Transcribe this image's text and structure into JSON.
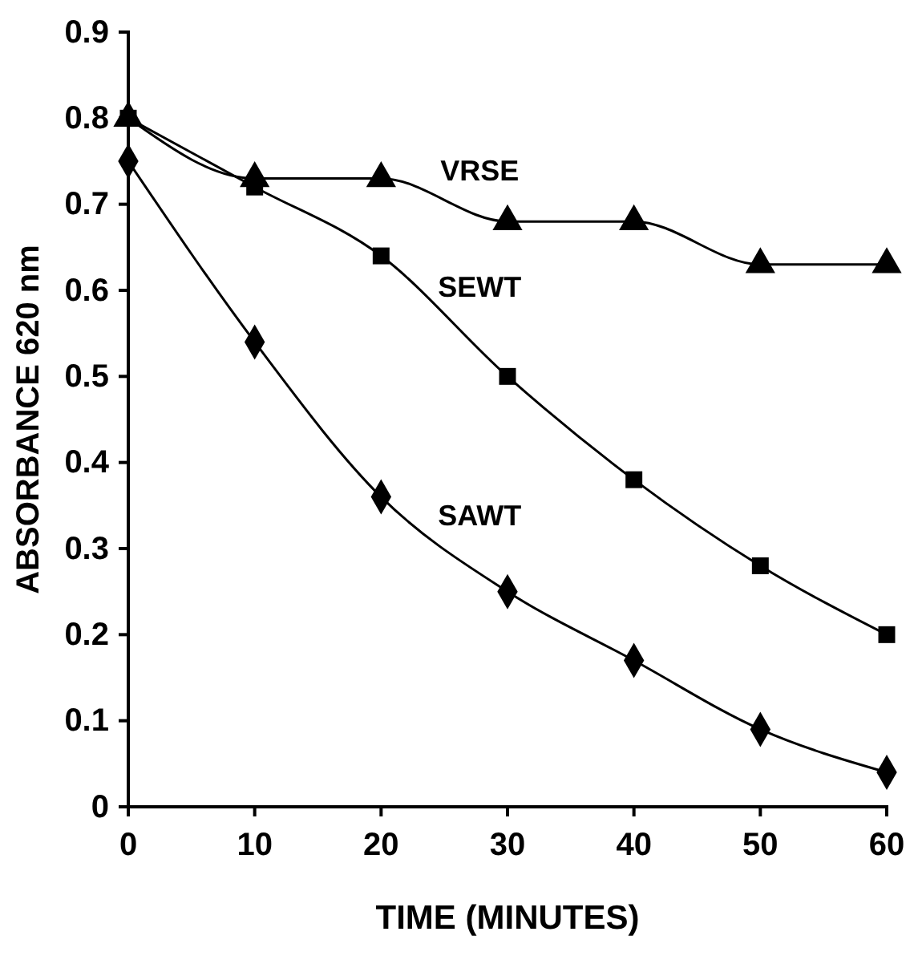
{
  "chart_data": {
    "type": "line",
    "xlabel": "TIME (MINUTES)",
    "ylabel": "ABSORBANCE 620 nm",
    "x": [
      0,
      10,
      20,
      30,
      40,
      50,
      60
    ],
    "series": [
      {
        "name": "VRSE",
        "color": "#000000",
        "marker": "triangle",
        "values": [
          0.8,
          0.73,
          0.73,
          0.68,
          0.68,
          0.63,
          0.63
        ]
      },
      {
        "name": "SEWT",
        "color": "#000000",
        "marker": "square",
        "values": [
          0.8,
          0.72,
          0.64,
          0.5,
          0.38,
          0.28,
          0.2
        ]
      },
      {
        "name": "SAWT",
        "color": "#000000",
        "marker": "diamond",
        "values": [
          0.75,
          0.54,
          0.36,
          0.25,
          0.17,
          0.09,
          0.04
        ]
      }
    ],
    "xlim": [
      0,
      60
    ],
    "xticks": [
      0,
      10,
      20,
      30,
      40,
      50,
      60
    ],
    "ylim": [
      0,
      0.9
    ],
    "yticks": [
      0,
      {
        "value": 0.1,
        "label": "0.1"
      },
      {
        "value": 0.2,
        "label": "0.2"
      },
      {
        "value": 0.3,
        "label": "0.3"
      },
      {
        "value": 0.4,
        "label": "0.4"
      },
      {
        "value": 0.5,
        "label": "0.5"
      },
      {
        "value": 0.6,
        "label": "0.6"
      },
      {
        "value": 0.7,
        "label": "0.7"
      },
      {
        "value": 0.8,
        "label": "0.8"
      },
      {
        "value": 0.9,
        "label": "0.9"
      }
    ],
    "grid": false,
    "line_style": "solid"
  }
}
